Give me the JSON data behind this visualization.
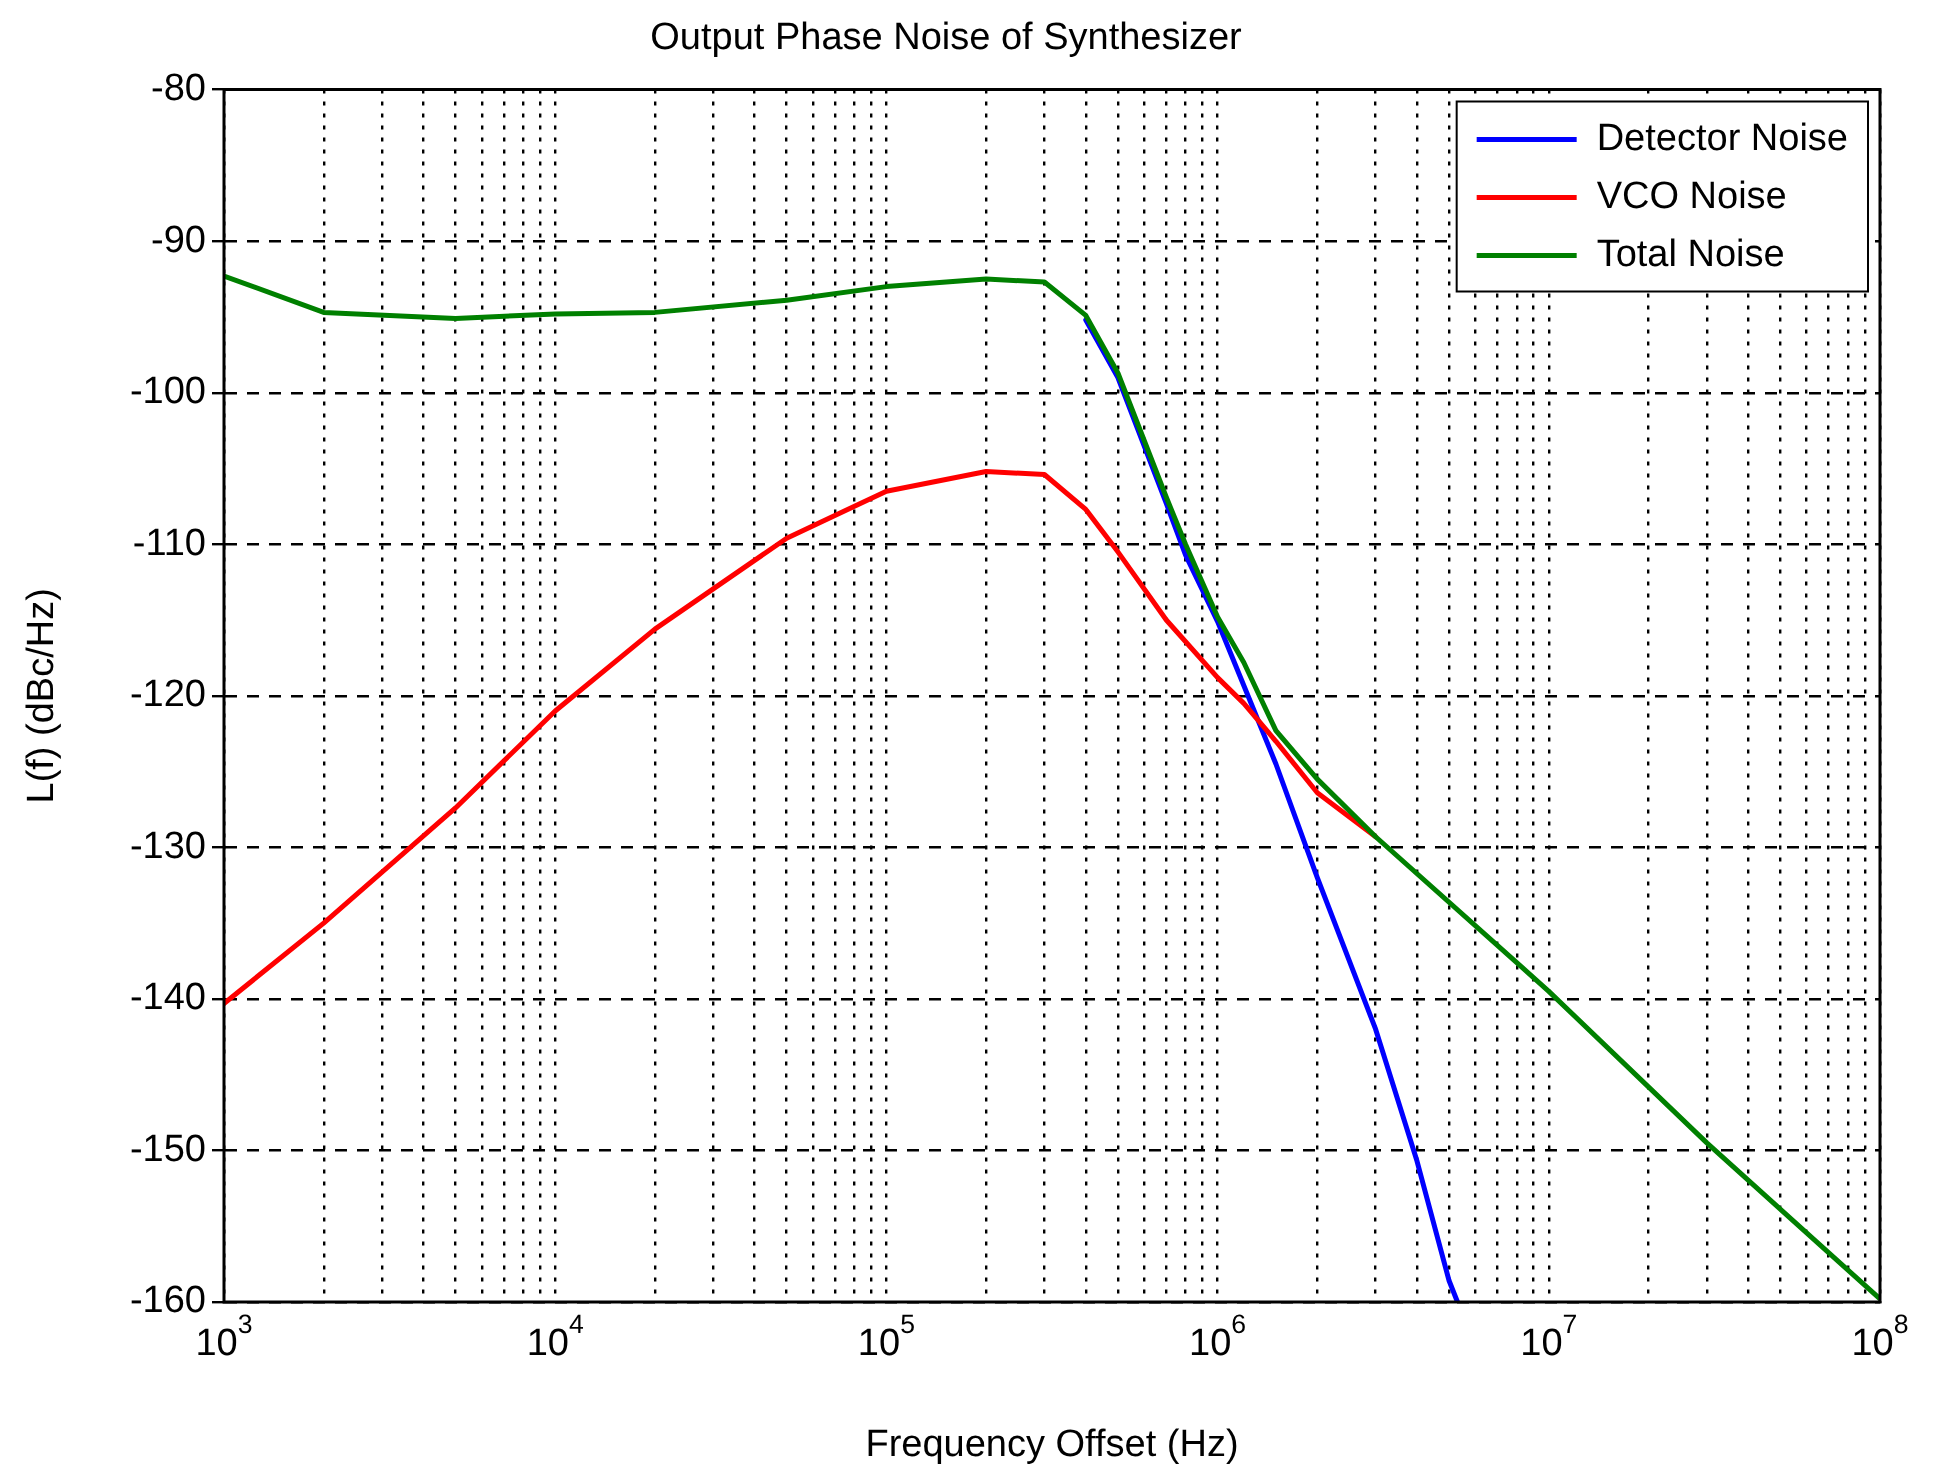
{
  "chart_data": {
    "type": "line",
    "title": "Output Phase Noise of Synthesizer",
    "xlabel": "Frequency Offset (Hz)",
    "ylabel": "L(f) (dBc/Hz)",
    "log": "x",
    "grid": true,
    "legend": "top right",
    "line_style": "solid",
    "marker": "none",
    "xlim": [
      1000,
      100000000
    ],
    "ylim": [
      -160,
      -80
    ],
    "xticks": [
      {
        "value": 1000,
        "label": "10$^{3}$"
      },
      {
        "value": 2000,
        "label": null
      },
      {
        "value": 3000,
        "label": null
      },
      {
        "value": 4000,
        "label": null
      },
      {
        "value": 5000,
        "label": null
      },
      {
        "value": 6000,
        "label": null
      },
      {
        "value": 7000,
        "label": null
      },
      {
        "value": 8000,
        "label": null
      },
      {
        "value": 9000,
        "label": null
      },
      {
        "value": 10000,
        "label": "10$^{4}$"
      },
      {
        "value": 20000,
        "label": null
      },
      {
        "value": 30000,
        "label": null
      },
      {
        "value": 40000,
        "label": null
      },
      {
        "value": 50000,
        "label": null
      },
      {
        "value": 60000,
        "label": null
      },
      {
        "value": 70000,
        "label": null
      },
      {
        "value": 80000,
        "label": null
      },
      {
        "value": 90000,
        "label": null
      },
      {
        "value": 100000,
        "label": "10$^{5}$"
      },
      {
        "value": 200000,
        "label": null
      },
      {
        "value": 300000,
        "label": null
      },
      {
        "value": 400000,
        "label": null
      },
      {
        "value": 500000,
        "label": null
      },
      {
        "value": 600000,
        "label": null
      },
      {
        "value": 700000,
        "label": null
      },
      {
        "value": 800000,
        "label": null
      },
      {
        "value": 900000,
        "label": null
      },
      {
        "value": 1000000,
        "label": "10$^{6}$"
      },
      {
        "value": 2000000,
        "label": null
      },
      {
        "value": 3000000,
        "label": null
      },
      {
        "value": 4000000,
        "label": null
      },
      {
        "value": 5000000,
        "label": null
      },
      {
        "value": 6000000,
        "label": null
      },
      {
        "value": 7000000,
        "label": null
      },
      {
        "value": 8000000,
        "label": null
      },
      {
        "value": 9000000,
        "label": null
      },
      {
        "value": 10000000,
        "label": "10$^{7}$"
      },
      {
        "value": 20000000,
        "label": null
      },
      {
        "value": 30000000,
        "label": null
      },
      {
        "value": 40000000,
        "label": null
      },
      {
        "value": 50000000,
        "label": null
      },
      {
        "value": 60000000,
        "label": null
      },
      {
        "value": 70000000,
        "label": null
      },
      {
        "value": 80000000,
        "label": null
      },
      {
        "value": 90000000,
        "label": null
      },
      {
        "value": 100000000,
        "label": "10$^{8}$"
      }
    ],
    "yticks": [
      -160,
      -150,
      -140,
      -130,
      -120,
      -110,
      -100,
      -90,
      -80
    ],
    "series": [
      {
        "name": "Detector Noise",
        "color": "#0000ff",
        "x": [
          400000,
          500000,
          700000,
          800000,
          1000000,
          1500000,
          2000000,
          3000000,
          4000000,
          5000000,
          5300000
        ],
        "values": [
          -95.2,
          -99,
          -107.3,
          -110.7,
          -115.1,
          -124.5,
          -132,
          -142,
          -150.7,
          -158.6,
          -160
        ]
      },
      {
        "name": "VCO Noise",
        "color": "#ff0000",
        "x": [
          1000,
          2000,
          5000,
          10000,
          20000,
          50000,
          100000,
          200000,
          300000,
          400000,
          500000,
          700000,
          1000000,
          1200000,
          1500000,
          2000000,
          3000000
        ],
        "values": [
          -140.3,
          -135,
          -127.4,
          -121,
          -115.6,
          -109.6,
          -106.5,
          -105.2,
          -105.4,
          -107.7,
          -110.5,
          -115,
          -118.8,
          -120.5,
          -123,
          -126.4,
          -129.3
        ]
      },
      {
        "name": "Total Noise",
        "color": "#008000",
        "x": [
          1000,
          2000,
          5000,
          10000,
          20000,
          50000,
          100000,
          200000,
          300000,
          400000,
          500000,
          700000,
          800000,
          1000000,
          1200000,
          1500000,
          2000000,
          3000000,
          10000000,
          30000000,
          100000000
        ],
        "values": [
          -92.3,
          -94.7,
          -95.1,
          -94.8,
          -94.7,
          -93.9,
          -93,
          -92.5,
          -92.7,
          -94.9,
          -98.7,
          -106.9,
          -110,
          -114.8,
          -117.8,
          -122.3,
          -125.5,
          -129.3,
          -139.5,
          -149.5,
          -159.8
        ]
      }
    ]
  }
}
